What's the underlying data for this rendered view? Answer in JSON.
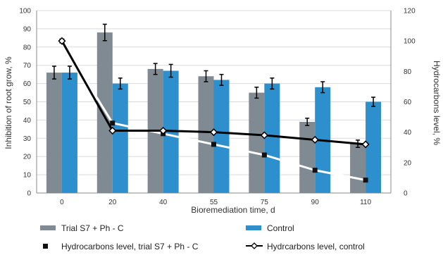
{
  "chart_data": {
    "type": "bar",
    "xlabel": "Bioremediation time,  d",
    "ylabel": "Inhibition of root grow, %",
    "y2label": "Hydrocarbons level, %",
    "ylim": [
      0,
      100
    ],
    "y2lim": [
      0,
      120
    ],
    "yticks": [
      0,
      10,
      20,
      30,
      40,
      50,
      60,
      70,
      80,
      90,
      100
    ],
    "y2ticks": [
      0,
      20,
      40,
      60,
      80,
      100,
      120
    ],
    "categories": [
      "0",
      "20",
      "40",
      "55",
      "75",
      "90",
      "110"
    ],
    "grid": true,
    "legend_position": "bottom",
    "series": [
      {
        "name": "Trial S7 + Ph - C",
        "kind": "bar",
        "axis": "left",
        "color": "#7f8a93",
        "values": [
          66,
          88,
          68,
          64,
          55,
          39,
          27
        ],
        "errors": [
          3.5,
          4.5,
          3,
          3,
          3,
          2,
          2
        ]
      },
      {
        "name": "Control",
        "kind": "bar",
        "axis": "left",
        "color": "#2d8fcc",
        "values": [
          66,
          60,
          67,
          62,
          60,
          58,
          50
        ],
        "errors": [
          3.5,
          3,
          3.5,
          3,
          3,
          3,
          2.5
        ]
      },
      {
        "name": "Hydrocarbons level, trial S7 + Ph - C",
        "kind": "line",
        "axis": "right",
        "color": "#ffffff",
        "marker": "square",
        "values": [
          100,
          46,
          39,
          32,
          25,
          15,
          8.5
        ]
      },
      {
        "name": "Hydrcarbons level, control",
        "kind": "line",
        "axis": "right",
        "color": "#000000",
        "marker": "diamond-open",
        "values": [
          100,
          41,
          41,
          40,
          38,
          35,
          32
        ]
      }
    ]
  }
}
